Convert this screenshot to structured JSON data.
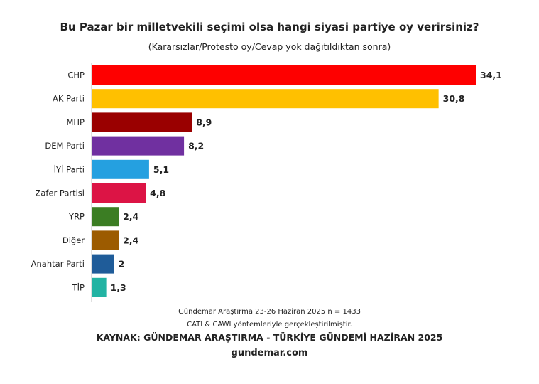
{
  "chart_data": {
    "type": "bar",
    "orientation": "horizontal",
    "title": "Bu Pazar bir milletvekili seçimi olsa hangi siyasi partiye oy verirsiniz?",
    "subtitle": "(Kararsızlar/Protesto oy/Cevap yok dağıtıldıktan sonra)",
    "categories": [
      "CHP",
      "AK Parti",
      "MHP",
      "DEM Parti",
      "İYİ Parti",
      "Zafer Partisi",
      "YRP",
      "Diğer",
      "Anahtar Parti",
      "TİP"
    ],
    "values": [
      34.1,
      30.8,
      8.9,
      8.2,
      5.1,
      4.8,
      2.4,
      2.4,
      2,
      1.3
    ],
    "value_labels": [
      "34,1",
      "30,8",
      "8,9",
      "8,2",
      "5,1",
      "4,8",
      "2,4",
      "2,4",
      "2",
      "1,3"
    ],
    "colors": [
      "#fe0000",
      "#ffc000",
      "#9a0000",
      "#7030a0",
      "#25a0e0",
      "#dc1445",
      "#3b7d23",
      "#9c5b00",
      "#1f5c99",
      "#22b3a3"
    ],
    "xlim": [
      0,
      34.1
    ],
    "grid": false,
    "legend": "none"
  },
  "footer": {
    "note1": "Gündemar Araştırma 23-26 Haziran 2025 n = 1433",
    "note2": "CATI & CAWI yöntemleriyle gerçekleştirilmiştir.",
    "source": "KAYNAK: GÜNDEMAR ARAŞTIRMA - TÜRKİYE GÜNDEMİ HAZİRAN 2025",
    "site": "gundemar.com"
  }
}
